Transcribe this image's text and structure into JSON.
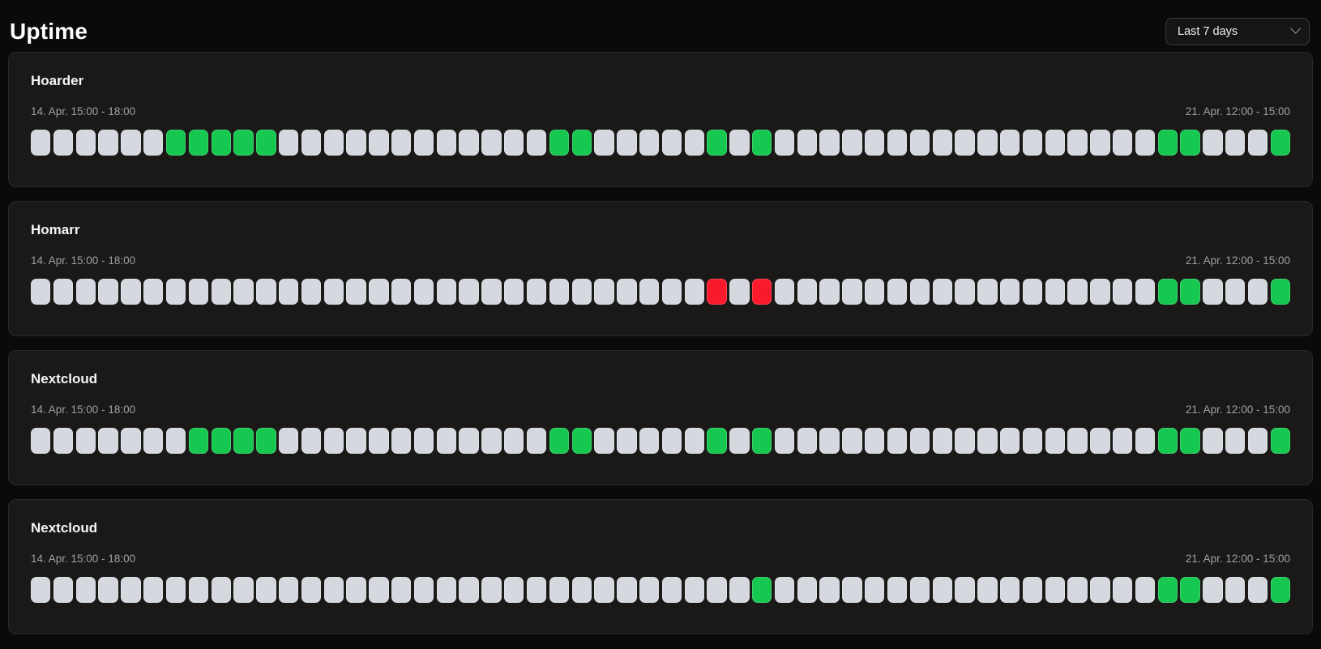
{
  "page": {
    "title": "Uptime"
  },
  "range_select": {
    "value": "Last 7 days",
    "icon": "chevron-down-icon"
  },
  "colors": {
    "up": "#16c750",
    "down": "#fa1a2c",
    "unknown": "#d5d9df",
    "card_bg": "#1b1918",
    "page_bg": "#0a0a0a"
  },
  "legend": {
    "cell_statuses": {
      "0": "unknown",
      "1": "up",
      "2": "down"
    },
    "cells_per_row": 56
  },
  "monitors": [
    {
      "name": "Hoarder",
      "start_label": "14. Apr. 15:00 - 18:00",
      "end_label": "21. Apr. 12:00 - 15:00",
      "cells": "00000011111000000000000110000010100000000000000000110001"
    },
    {
      "name": "Homarr",
      "start_label": "14. Apr. 15:00 - 18:00",
      "end_label": "21. Apr. 12:00 - 15:00",
      "cells": "00000000000000000000000000000020200000000000000000110001"
    },
    {
      "name": "Nextcloud",
      "start_label": "14. Apr. 15:00 - 18:00",
      "end_label": "21. Apr. 12:00 - 15:00",
      "cells": "00000001111000000000000110000010100000000000000000110001"
    },
    {
      "name": "Nextcloud",
      "start_label": "14. Apr. 15:00 - 18:00",
      "end_label": "21. Apr. 12:00 - 15:00",
      "cells": "00000000000000000000000000000000100000000000000000110001"
    }
  ]
}
